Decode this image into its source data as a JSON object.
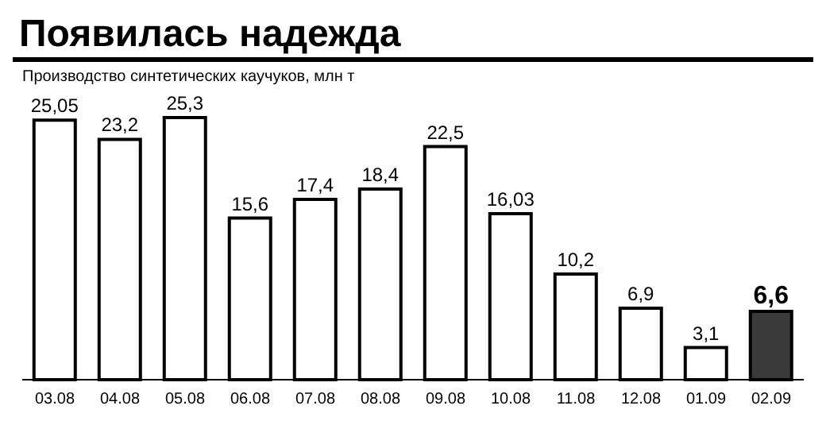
{
  "chart_data": {
    "type": "bar",
    "title": "Появилась надежда",
    "subtitle": "Производство синтетических каучуков, млн т",
    "categories": [
      "03.08",
      "04.08",
      "05.08",
      "06.08",
      "07.08",
      "08.08",
      "09.08",
      "10.08",
      "11.08",
      "12.08",
      "01.09",
      "02.09"
    ],
    "values": [
      25.05,
      23.2,
      25.3,
      15.6,
      17.4,
      18.4,
      22.5,
      16.03,
      10.2,
      6.9,
      3.1,
      6.6
    ],
    "value_labels": [
      "25,05",
      "23,2",
      "25,3",
      "15,6",
      "17,4",
      "18,4",
      "22,5",
      "16,03",
      "10,2",
      "6,9",
      "3,1",
      "6,6"
    ],
    "colors": [
      "#ffffff",
      "#ffffff",
      "#ffffff",
      "#ffffff",
      "#ffffff",
      "#ffffff",
      "#ffffff",
      "#ffffff",
      "#ffffff",
      "#ffffff",
      "#ffffff",
      "#3a3a3a"
    ],
    "grid": false,
    "legend": false
  }
}
